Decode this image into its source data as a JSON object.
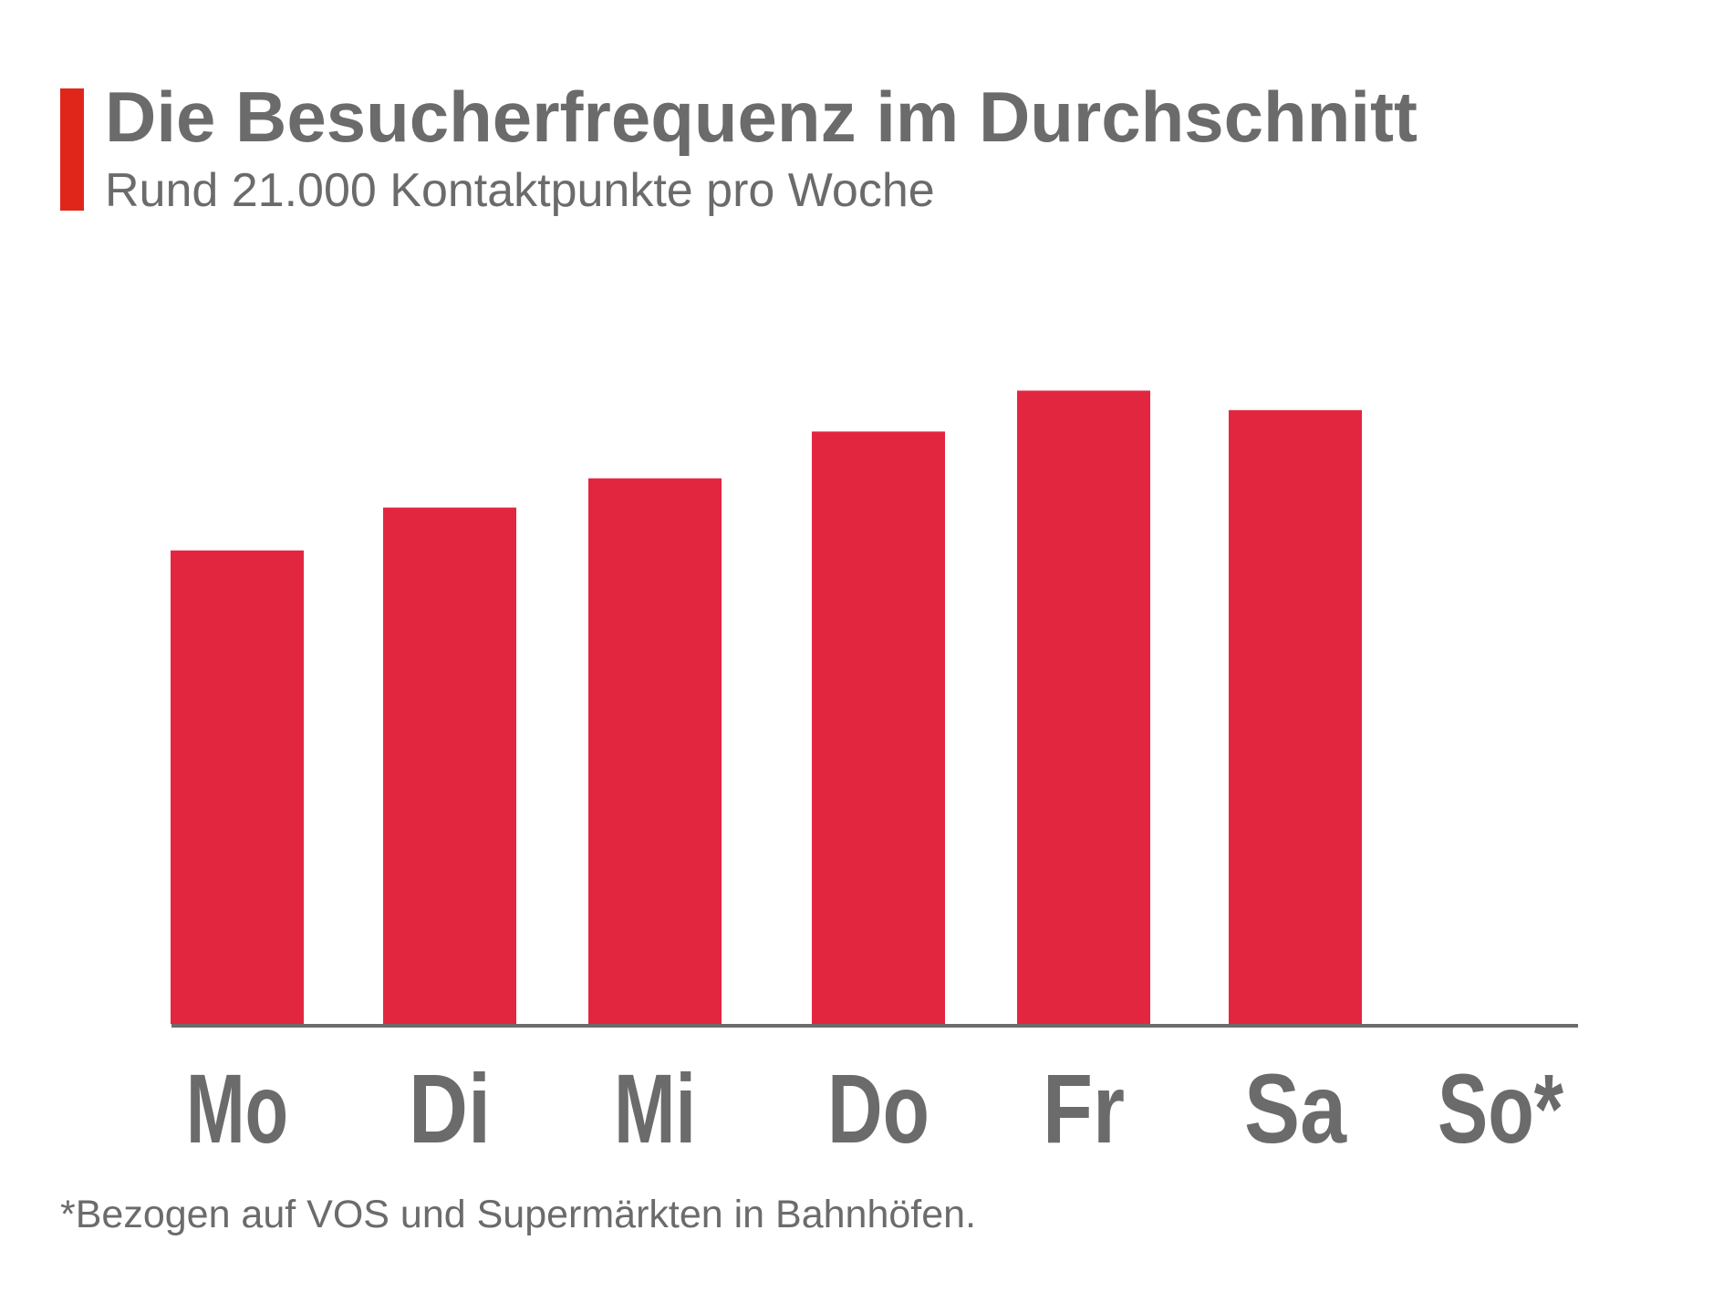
{
  "header": {
    "title": "Die Besucherfrequenz im Durchschnitt",
    "subtitle": "Rund 21.000 Kontaktpunkte pro Woche"
  },
  "footnote": "*Bezogen auf VOS und Supermärkten in Bahnhöfen.",
  "colors": {
    "bar": "#e32640",
    "accent": "#e0261b",
    "text": "#6b6b6b",
    "axis": "#6b6b6b"
  },
  "chart_data": {
    "type": "bar",
    "categories": [
      "Mo",
      "Di",
      "Mi",
      "Do",
      "Fr",
      "Sa",
      "So*"
    ],
    "values": [
      2.43,
      2.65,
      2.8,
      3.04,
      3.25,
      3.15,
      0
    ],
    "title": "Die Besucherfrequenz im Durchschnitt",
    "subtitle": "Rund 21.000 Kontaktpunkte pro Woche",
    "xlabel": "",
    "ylabel": "",
    "ylim": [
      0,
      3.5
    ],
    "grid": false,
    "legend": "none"
  }
}
